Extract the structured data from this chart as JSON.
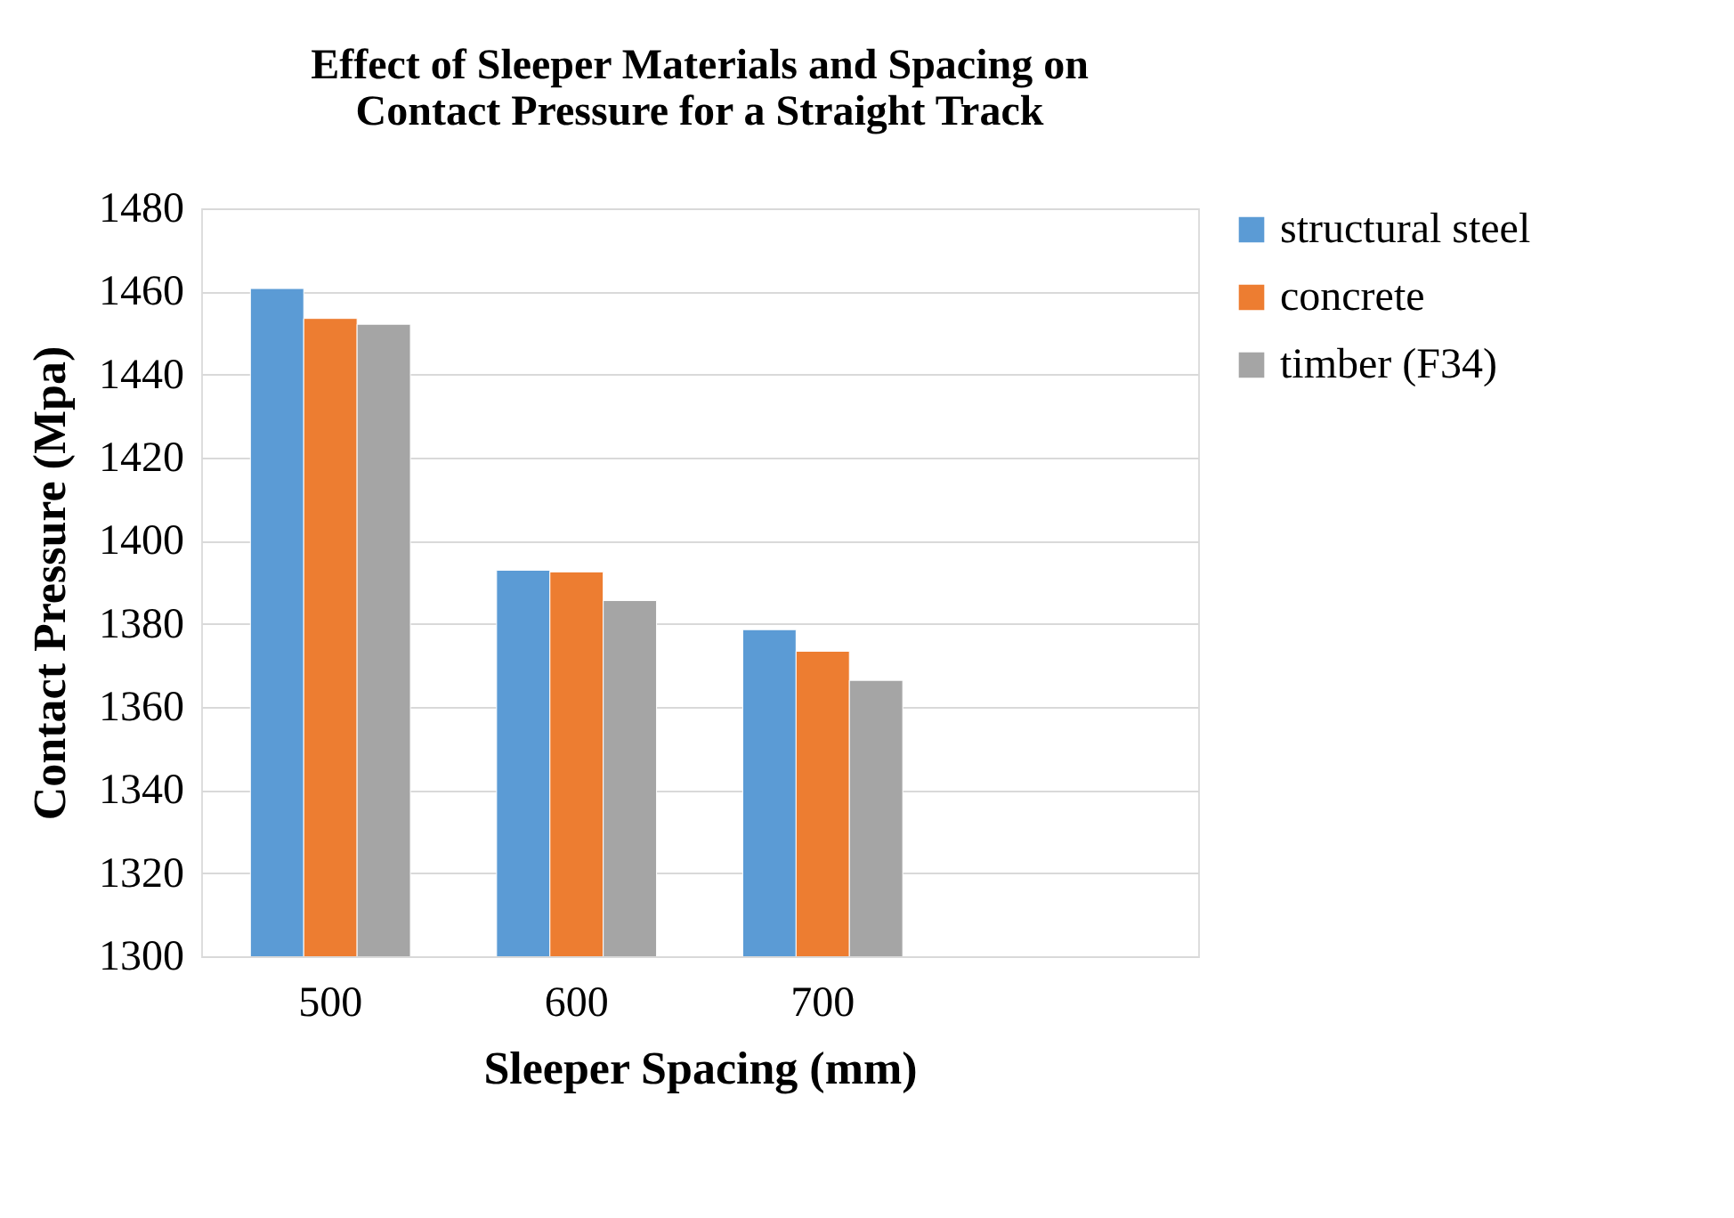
{
  "chart_data": {
    "type": "bar",
    "title": "Effect of Sleeper Materials and Spacing on Contact Pressure for a Straight Track",
    "xlabel": "Sleeper Spacing (mm)",
    "ylabel": "Contact Pressure (Mpa)",
    "categories": [
      "500",
      "600",
      "700",
      null
    ],
    "series": [
      {
        "name": "structural steel",
        "color": "#5b9bd5",
        "values": [
          1460.7,
          1392.9,
          1378.6,
          null
        ]
      },
      {
        "name": "concrete",
        "color": "#ed7d31",
        "values": [
          1453.5,
          1392.5,
          1373.4,
          null
        ]
      },
      {
        "name": "timber (F34)",
        "color": "#a5a5a5",
        "values": [
          1452.1,
          1385.6,
          1366.4,
          null
        ]
      }
    ],
    "ylim": [
      1300,
      1480
    ],
    "yticks": [
      1300,
      1320,
      1340,
      1360,
      1380,
      1400,
      1420,
      1440,
      1460,
      1480
    ],
    "grid": "y",
    "legend": "right"
  }
}
